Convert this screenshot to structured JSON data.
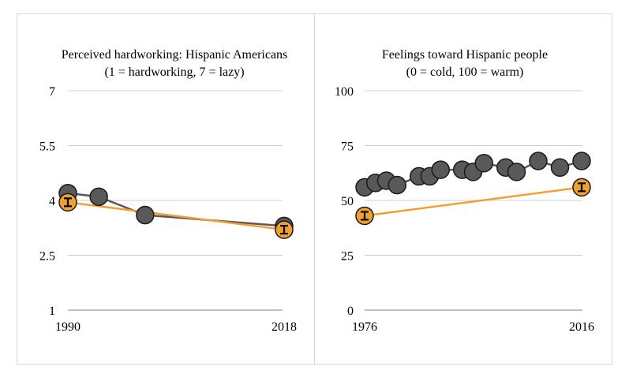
{
  "chart_data": [
    {
      "type": "line",
      "title": "Perceived hardworking: Hispanic Americans",
      "subtitle": "(1 = hardworking, 7 = lazy)",
      "xlabel": "",
      "ylabel": "",
      "x_ticks": [
        "1990",
        "2018"
      ],
      "y_ticks": [
        "1",
        "2.5",
        "4",
        "5.5",
        "7"
      ],
      "xlim": [
        1990,
        2018
      ],
      "ylim": [
        1,
        7
      ],
      "grid": true,
      "series": [
        {
          "color": "#595959",
          "marker_color": "#595959",
          "x": [
            1990,
            1994,
            2000,
            2018
          ],
          "y": [
            4.2,
            4.1,
            3.6,
            3.3
          ]
        },
        {
          "color": "#f0a030",
          "marker_color": "#f0a030",
          "error_bars": true,
          "x": [
            1990,
            2018
          ],
          "y": [
            3.95,
            3.2
          ]
        }
      ]
    },
    {
      "type": "line",
      "title": "Feelings toward Hispanic people",
      "subtitle": "(0 = cold, 100 = warm)",
      "xlabel": "",
      "ylabel": "",
      "x_ticks": [
        "1976",
        "2016"
      ],
      "y_ticks": [
        "0",
        "25",
        "50",
        "75",
        "100"
      ],
      "xlim": [
        1976,
        2016
      ],
      "ylim": [
        0,
        100
      ],
      "grid": true,
      "series": [
        {
          "color": "#595959",
          "marker_color": "#595959",
          "x": [
            1976,
            1978,
            1980,
            1982,
            1986,
            1988,
            1990,
            1994,
            1996,
            1998,
            2002,
            2004,
            2008,
            2012,
            2016
          ],
          "y": [
            56,
            58,
            59,
            57,
            61,
            61,
            64,
            64,
            63,
            67,
            65,
            63,
            68,
            65,
            68
          ]
        },
        {
          "color": "#f0a030",
          "marker_color": "#f0a030",
          "error_bars": true,
          "x": [
            1976,
            2016
          ],
          "y": [
            43,
            56
          ]
        }
      ]
    }
  ]
}
